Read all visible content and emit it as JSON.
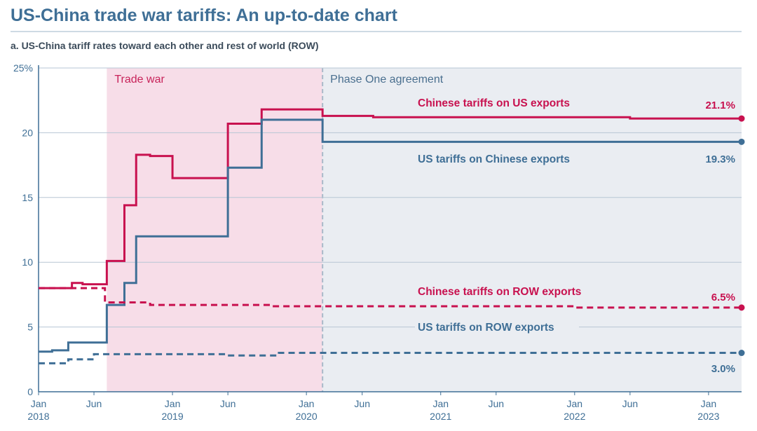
{
  "header": {
    "title": "US-China trade war tariffs: An up-to-date chart",
    "subtitle": "a. US-China tariff rates toward each other and rest of world (ROW)"
  },
  "chart_data": {
    "type": "line",
    "step": true,
    "x_range": [
      "2018-01-01",
      "2023-04-01"
    ],
    "ylim": [
      0,
      25
    ],
    "y_ticks": [
      {
        "value": 0,
        "label": "0"
      },
      {
        "value": 5,
        "label": "5"
      },
      {
        "value": 10,
        "label": "10"
      },
      {
        "value": 15,
        "label": "15"
      },
      {
        "value": 20,
        "label": "20"
      },
      {
        "value": 25,
        "label": "25%"
      }
    ],
    "x_ticks": [
      {
        "date": "2018-01-01",
        "line1": "Jan",
        "line2": "2018"
      },
      {
        "date": "2018-06-01",
        "line1": "Jun",
        "line2": ""
      },
      {
        "date": "2019-01-01",
        "line1": "Jan",
        "line2": "2019"
      },
      {
        "date": "2019-06-01",
        "line1": "Jun",
        "line2": ""
      },
      {
        "date": "2020-01-01",
        "line1": "Jan",
        "line2": "2020"
      },
      {
        "date": "2020-06-01",
        "line1": "Jun",
        "line2": ""
      },
      {
        "date": "2021-01-01",
        "line1": "Jan",
        "line2": "2021"
      },
      {
        "date": "2021-06-01",
        "line1": "Jun",
        "line2": ""
      },
      {
        "date": "2022-01-01",
        "line1": "Jan",
        "line2": "2022"
      },
      {
        "date": "2022-06-01",
        "line1": "Jun",
        "line2": ""
      },
      {
        "date": "2023-01-01",
        "line1": "Jan",
        "line2": "2023"
      }
    ],
    "grid": true,
    "bands": [
      {
        "label": "Trade war",
        "start": "2018-07-06",
        "end": "2020-02-14",
        "color": "#f7dde8",
        "text_color": "#c8235a"
      },
      {
        "label": "Phase One agreement",
        "start": "2020-02-14",
        "end": "2023-04-01",
        "color": "#eaedf2",
        "text_color": "#4a6f8f"
      }
    ],
    "series": [
      {
        "name": "Chinese tariffs on US exports",
        "color": "#c8114f",
        "dashed": false,
        "end_label": "21.1%",
        "points": [
          [
            "2018-01-01",
            8.0
          ],
          [
            "2018-04-02",
            8.4
          ],
          [
            "2018-05-01",
            8.3
          ],
          [
            "2018-07-06",
            10.1
          ],
          [
            "2018-08-23",
            14.4
          ],
          [
            "2018-09-24",
            18.3
          ],
          [
            "2018-11-01",
            18.2
          ],
          [
            "2019-01-01",
            16.5
          ],
          [
            "2019-06-01",
            20.7
          ],
          [
            "2019-09-01",
            21.8
          ],
          [
            "2020-02-14",
            21.3
          ],
          [
            "2020-07-01",
            21.2
          ],
          [
            "2022-06-01",
            21.1
          ],
          [
            "2023-04-01",
            21.1
          ]
        ]
      },
      {
        "name": "US tariffs on Chinese exports",
        "color": "#3f6f96",
        "dashed": false,
        "end_label": "19.3%",
        "points": [
          [
            "2018-01-01",
            3.1
          ],
          [
            "2018-02-07",
            3.2
          ],
          [
            "2018-03-23",
            3.8
          ],
          [
            "2018-07-06",
            6.7
          ],
          [
            "2018-08-23",
            8.4
          ],
          [
            "2018-09-24",
            12.0
          ],
          [
            "2019-06-01",
            17.3
          ],
          [
            "2019-09-01",
            21.0
          ],
          [
            "2020-02-14",
            19.3
          ],
          [
            "2023-04-01",
            19.3
          ]
        ]
      },
      {
        "name": "Chinese tariffs on ROW exports",
        "color": "#c8114f",
        "dashed": true,
        "end_label": "6.5%",
        "points": [
          [
            "2018-01-01",
            8.0
          ],
          [
            "2018-07-01",
            6.9
          ],
          [
            "2018-11-01",
            6.7
          ],
          [
            "2019-10-01",
            6.6
          ],
          [
            "2022-01-01",
            6.5
          ],
          [
            "2023-04-01",
            6.5
          ]
        ]
      },
      {
        "name": "US tariffs on ROW exports",
        "color": "#3f6f96",
        "dashed": true,
        "end_label": "3.0%",
        "points": [
          [
            "2018-01-01",
            2.2
          ],
          [
            "2018-03-23",
            2.5
          ],
          [
            "2018-06-01",
            2.9
          ],
          [
            "2019-06-01",
            2.8
          ],
          [
            "2019-10-18",
            3.0
          ],
          [
            "2023-04-01",
            3.0
          ]
        ]
      }
    ]
  }
}
